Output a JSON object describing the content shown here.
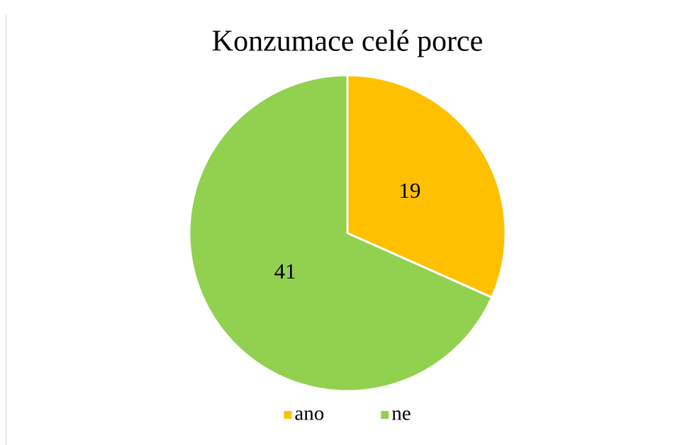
{
  "chart_data": {
    "type": "pie",
    "title": "Konzumace celé porce",
    "categories": [
      "ano",
      "ne"
    ],
    "values": [
      19,
      41
    ],
    "colors": [
      "#FFC000",
      "#92D050"
    ],
    "legend": "bottom"
  }
}
